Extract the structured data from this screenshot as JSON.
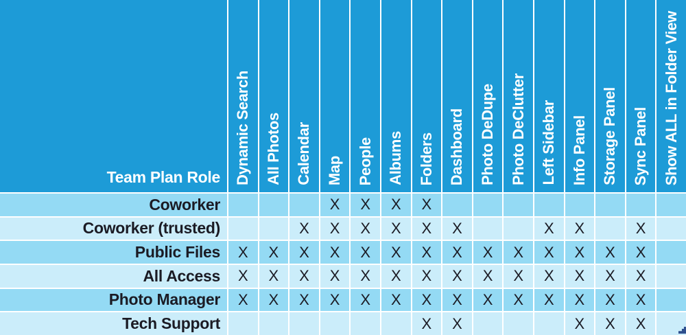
{
  "chart_data": {
    "type": "table",
    "corner_label": "Team Plan Role",
    "mark": "X",
    "columns": [
      "Dynamic Search",
      "All Photos",
      "Calendar",
      "Map",
      "People",
      "Albums",
      "Folders",
      "Dashboard",
      "Photo DeDupe",
      "Photo DeClutter",
      "Left Sidebar",
      "Info Panel",
      "Storage Panel",
      "Sync Panel",
      "Show ALL in Folder View"
    ],
    "rows": [
      {
        "label": "Coworker",
        "values": [
          "",
          "",
          "",
          "X",
          "X",
          "X",
          "X",
          "",
          "",
          "",
          "",
          "",
          "",
          "",
          ""
        ]
      },
      {
        "label": "Coworker (trusted)",
        "values": [
          "",
          "",
          "X",
          "X",
          "X",
          "X",
          "X",
          "X",
          "",
          "",
          "X",
          "X",
          "",
          "X",
          ""
        ]
      },
      {
        "label": "Public Files",
        "values": [
          "X",
          "X",
          "X",
          "X",
          "X",
          "X",
          "X",
          "X",
          "X",
          "X",
          "X",
          "X",
          "X",
          "X",
          ""
        ]
      },
      {
        "label": "All Access",
        "values": [
          "X",
          "X",
          "X",
          "X",
          "X",
          "X",
          "X",
          "X",
          "X",
          "X",
          "X",
          "X",
          "X",
          "X",
          ""
        ]
      },
      {
        "label": "Photo Manager",
        "values": [
          "X",
          "X",
          "X",
          "X",
          "X",
          "X",
          "X",
          "X",
          "X",
          "X",
          "X",
          "X",
          "X",
          "X",
          ""
        ]
      },
      {
        "label": "Tech Support",
        "values": [
          "",
          "",
          "",
          "",
          "",
          "",
          "X",
          "X",
          "",
          "",
          "",
          "X",
          "X",
          "X",
          ""
        ]
      }
    ]
  },
  "colors": {
    "header_bg": "#1d9bd7",
    "row_alt_dark": "#94daf4",
    "row_alt_light": "#cbedfa",
    "grid_line": "#ffffff",
    "header_text": "#ffffff",
    "body_text": "#1b1b24",
    "corner_artifact": "#2e4f8e"
  }
}
